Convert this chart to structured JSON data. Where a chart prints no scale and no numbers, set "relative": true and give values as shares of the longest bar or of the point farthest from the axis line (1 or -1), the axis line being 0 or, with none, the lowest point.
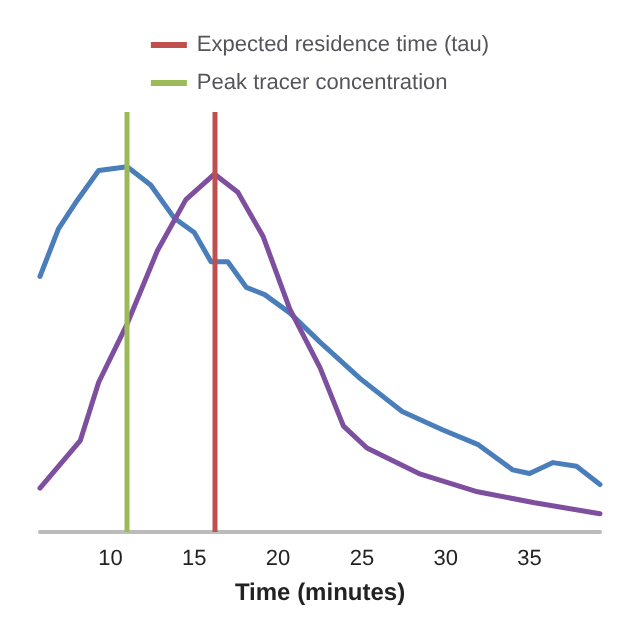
{
  "chart_data": {
    "type": "line",
    "relative": true,
    "xlabel": "Time (minutes)",
    "xlim": [
      5.8,
      39.2
    ],
    "xticks": [
      10,
      15,
      20,
      25,
      30,
      35
    ],
    "tick_labels": "x",
    "grid": false,
    "legend": "top",
    "marker": "none",
    "line_style": "solid",
    "series": [
      {
        "color": "#4a7ebb",
        "x": [
          5.8,
          6.9,
          7.9,
          9.3,
          11.0,
          12.4,
          13.8,
          15.0,
          16.0,
          17.0,
          18.1,
          19.2,
          20.7,
          22.5,
          24.9,
          27.4,
          29.8,
          31.9,
          34.0,
          35.0,
          36.4,
          37.8,
          39.2
        ],
        "values": [
          0.7,
          0.83,
          0.9,
          0.99,
          1.0,
          0.95,
          0.86,
          0.82,
          0.74,
          0.74,
          0.67,
          0.65,
          0.6,
          0.52,
          0.42,
          0.33,
          0.28,
          0.24,
          0.17,
          0.16,
          0.19,
          0.18,
          0.13
        ]
      },
      {
        "color": "#7d4f9e",
        "x": [
          5.8,
          8.2,
          9.3,
          11.0,
          12.8,
          14.5,
          16.2,
          17.6,
          19.1,
          20.7,
          22.5,
          23.9,
          25.3,
          28.4,
          31.9,
          35.3,
          39.2
        ],
        "values": [
          0.12,
          0.25,
          0.41,
          0.57,
          0.77,
          0.91,
          0.98,
          0.93,
          0.81,
          0.61,
          0.45,
          0.29,
          0.23,
          0.16,
          0.11,
          0.08,
          0.05
        ]
      }
    ],
    "ref_lines": [
      {
        "axis": "x",
        "value": 16.2,
        "label": "Expected residence time (tau)",
        "color": "#c0504d"
      },
      {
        "axis": "x",
        "value": 11.0,
        "label": "Peak tracer concentration",
        "color": "#9bbb59"
      }
    ]
  }
}
